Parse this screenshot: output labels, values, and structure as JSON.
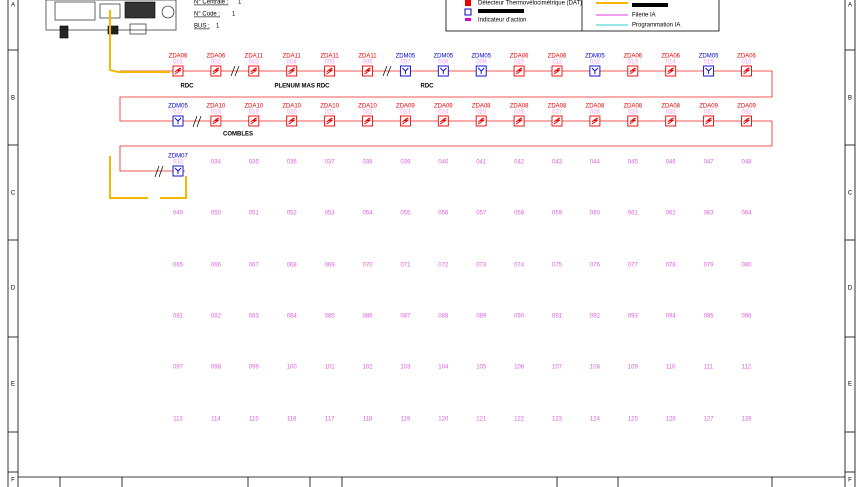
{
  "header": {
    "fields": [
      {
        "label": "N° Centrale :",
        "value": "1"
      },
      {
        "label": "N° Code :",
        "value": "1"
      },
      {
        "label": "BUS :",
        "value": "1"
      }
    ]
  },
  "legend": {
    "items": [
      "Détecteur Thermovélocimétrique (DAT)",
      "Indicateur d'action",
      "Filerie IA",
      "Programmation IA"
    ]
  },
  "frame_rows": [
    "A",
    "B",
    "C",
    "D",
    "E",
    "F"
  ],
  "loops": [
    {
      "devices": [
        {
          "zone": "ZDA06",
          "address": "001"
        },
        {
          "zone": "ZDA06",
          "address": "002"
        },
        {
          "zone": "ZDA11",
          "address": "003"
        },
        {
          "zone": "ZDA11",
          "address": "004"
        },
        {
          "zone": "ZDA11",
          "address": "005"
        },
        {
          "zone": "ZDA11",
          "address": "006"
        },
        {
          "zone": "ZDM05",
          "address": "007"
        },
        {
          "zone": "ZDM05",
          "address": "008"
        },
        {
          "zone": "ZDM05",
          "address": "009"
        },
        {
          "zone": "ZDA06",
          "address": "010"
        },
        {
          "zone": "ZDA06",
          "address": "011"
        },
        {
          "zone": "ZDM05",
          "address": "012"
        },
        {
          "zone": "ZDA06",
          "address": "013"
        },
        {
          "zone": "ZDA06",
          "address": "014"
        },
        {
          "zone": "ZDM05",
          "address": "015"
        },
        {
          "zone": "ZDA06",
          "address": "016"
        }
      ]
    },
    {
      "devices": [
        {
          "zone": "ZDM05",
          "address": "017"
        },
        {
          "zone": "ZDA10",
          "address": "018"
        },
        {
          "zone": "ZDA10",
          "address": "019"
        },
        {
          "zone": "ZDA10",
          "address": "020"
        },
        {
          "zone": "ZDA10",
          "address": "021"
        },
        {
          "zone": "ZDA10",
          "address": "022"
        },
        {
          "zone": "ZDA09",
          "address": "023"
        },
        {
          "zone": "ZDA09",
          "address": "024"
        },
        {
          "zone": "ZDA08",
          "address": "025"
        },
        {
          "zone": "ZDA08",
          "address": "026"
        },
        {
          "zone": "ZDA08",
          "address": "027"
        },
        {
          "zone": "ZDA08",
          "address": "028"
        },
        {
          "zone": "ZDA08",
          "address": "029"
        },
        {
          "zone": "ZDA08",
          "address": "030"
        },
        {
          "zone": "ZDA09",
          "address": "031"
        },
        {
          "zone": "ZDA09",
          "address": "032"
        }
      ]
    },
    {
      "devices": [
        {
          "zone": "ZDM07",
          "address": "033"
        }
      ]
    }
  ],
  "zones": [
    "RDC",
    "PLENUM MAS RDC",
    "RDC",
    "COMBLES"
  ],
  "free_addresses": [
    [
      "034",
      "035",
      "036",
      "037",
      "038",
      "039",
      "040",
      "041",
      "042",
      "043",
      "044",
      "045",
      "046",
      "047",
      "048"
    ],
    [
      "049",
      "050",
      "051",
      "052",
      "053",
      "054",
      "055",
      "056",
      "057",
      "058",
      "059",
      "060",
      "061",
      "062",
      "063",
      "064"
    ],
    [
      "065",
      "066",
      "067",
      "068",
      "069",
      "070",
      "071",
      "072",
      "073",
      "074",
      "075",
      "076",
      "077",
      "078",
      "079",
      "080"
    ],
    [
      "081",
      "082",
      "083",
      "084",
      "085",
      "086",
      "087",
      "088",
      "089",
      "090",
      "091",
      "092",
      "093",
      "094",
      "095",
      "096"
    ],
    [
      "097",
      "098",
      "099",
      "100",
      "101",
      "102",
      "103",
      "104",
      "105",
      "106",
      "107",
      "108",
      "109",
      "110",
      "111",
      "112"
    ],
    [
      "113",
      "114",
      "115",
      "116",
      "117",
      "118",
      "119",
      "120",
      "121",
      "122",
      "123",
      "124",
      "125",
      "126",
      "127",
      "128"
    ]
  ]
}
